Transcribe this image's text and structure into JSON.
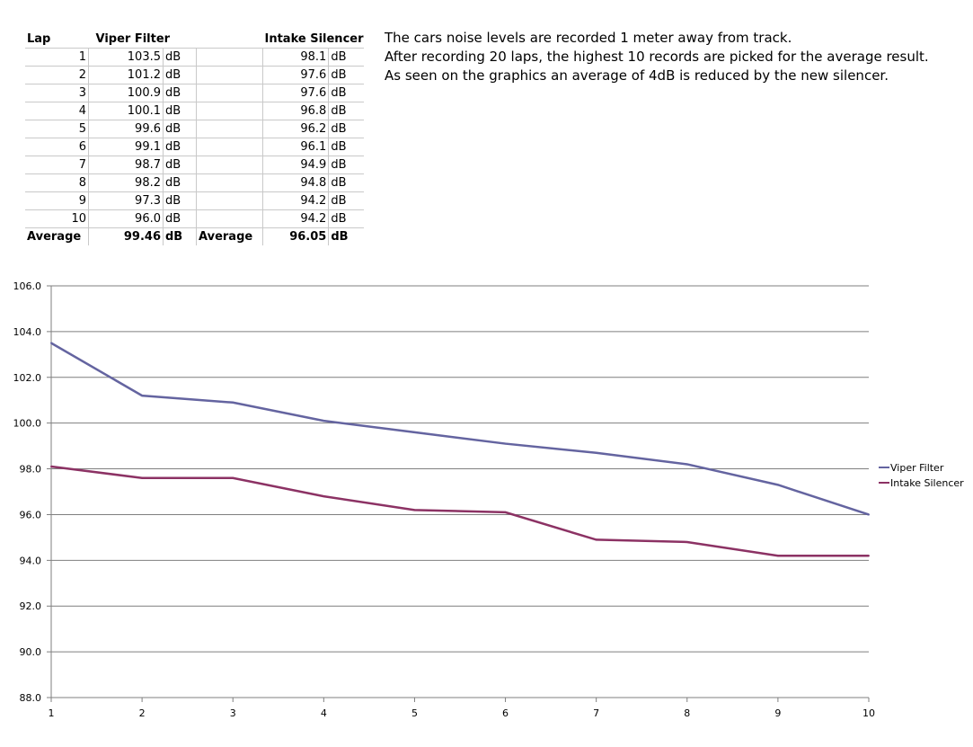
{
  "table": {
    "headers": {
      "lap": "Lap",
      "viper": "Viper Filter",
      "intake": "Intake Silencer"
    },
    "unit": "dB",
    "rows": [
      {
        "lap": "1",
        "viper": "103.5",
        "intake": "98.1"
      },
      {
        "lap": "2",
        "viper": "101.2",
        "intake": "97.6"
      },
      {
        "lap": "3",
        "viper": "100.9",
        "intake": "97.6"
      },
      {
        "lap": "4",
        "viper": "100.1",
        "intake": "96.8"
      },
      {
        "lap": "5",
        "viper": "99.6",
        "intake": "96.2"
      },
      {
        "lap": "6",
        "viper": "99.1",
        "intake": "96.1"
      },
      {
        "lap": "7",
        "viper": "98.7",
        "intake": "94.9"
      },
      {
        "lap": "8",
        "viper": "98.2",
        "intake": "94.8"
      },
      {
        "lap": "9",
        "viper": "97.3",
        "intake": "94.2"
      },
      {
        "lap": "10",
        "viper": "96.0",
        "intake": "94.2"
      }
    ],
    "average_label": "Average",
    "viper_average": "99.46",
    "intake_average": "96.05"
  },
  "notes": [
    "The cars noise levels are recorded 1 meter away from track.",
    "After recording 20 laps, the highest 10 records are picked for the average result.",
    "As seen on the graphics an average of 4dB is reduced by the new silencer."
  ],
  "chart_data": {
    "type": "line",
    "title": "",
    "xlabel": "",
    "ylabel": "",
    "x": [
      1,
      2,
      3,
      4,
      5,
      6,
      7,
      8,
      9,
      10
    ],
    "ylim": [
      88.0,
      106.0
    ],
    "yticks": [
      "88.0",
      "90.0",
      "92.0",
      "94.0",
      "96.0",
      "98.0",
      "100.0",
      "102.0",
      "104.0",
      "106.0"
    ],
    "grid": true,
    "legend_position": "right",
    "series": [
      {
        "name": "Viper Filter",
        "color": "#6464a0",
        "values": [
          103.5,
          101.2,
          100.9,
          100.1,
          99.6,
          99.1,
          98.7,
          98.2,
          97.3,
          96.0
        ]
      },
      {
        "name": "Intake Silencer",
        "color": "#8c3264",
        "values": [
          98.1,
          97.6,
          97.6,
          96.8,
          96.2,
          96.1,
          94.9,
          94.8,
          94.2,
          94.2
        ]
      }
    ]
  }
}
